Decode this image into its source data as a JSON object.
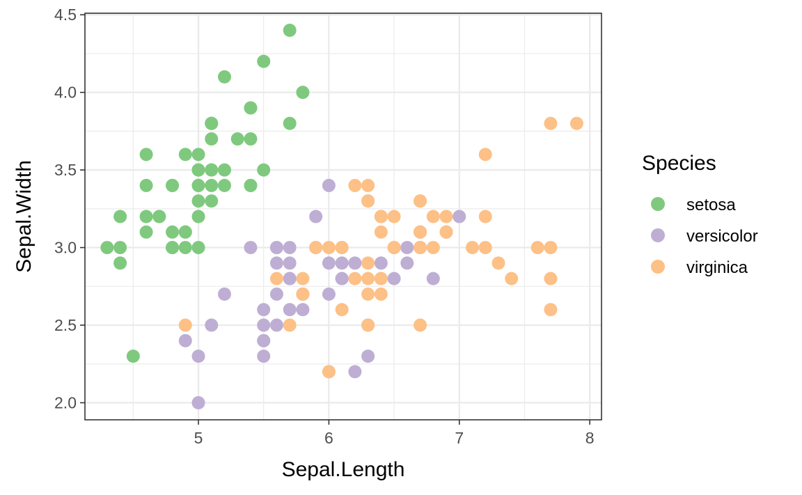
{
  "chart_data": {
    "type": "scatter",
    "xlabel": "Sepal.Length",
    "ylabel": "Sepal.Width",
    "xlim": [
      4.13,
      8.09
    ],
    "ylim": [
      1.89,
      4.51
    ],
    "x_ticks": [
      5,
      6,
      7,
      8
    ],
    "x_minor_ticks": [
      4.5,
      5.5,
      6.5,
      7.5
    ],
    "y_ticks": [
      2.0,
      2.5,
      3.0,
      3.5,
      4.0,
      4.5
    ],
    "y_tick_labels": [
      "2.0",
      "2.5",
      "3.0",
      "3.5",
      "4.0",
      "4.5"
    ],
    "y_minor_ticks": [
      2.25,
      2.75,
      3.25,
      3.75,
      4.25
    ],
    "grid": true,
    "legend": {
      "title": "Species",
      "position": "right"
    },
    "series": [
      {
        "name": "setosa",
        "color": "#7fc97f",
        "points": [
          [
            5.1,
            3.5
          ],
          [
            4.9,
            3.0
          ],
          [
            4.7,
            3.2
          ],
          [
            4.6,
            3.1
          ],
          [
            5.0,
            3.6
          ],
          [
            5.4,
            3.9
          ],
          [
            4.6,
            3.4
          ],
          [
            5.0,
            3.4
          ],
          [
            4.4,
            2.9
          ],
          [
            4.9,
            3.1
          ],
          [
            5.4,
            3.7
          ],
          [
            4.8,
            3.4
          ],
          [
            4.8,
            3.0
          ],
          [
            4.3,
            3.0
          ],
          [
            5.8,
            4.0
          ],
          [
            5.7,
            4.4
          ],
          [
            5.4,
            3.9
          ],
          [
            5.1,
            3.5
          ],
          [
            5.7,
            3.8
          ],
          [
            5.1,
            3.8
          ],
          [
            5.4,
            3.4
          ],
          [
            5.1,
            3.7
          ],
          [
            4.6,
            3.6
          ],
          [
            5.1,
            3.3
          ],
          [
            4.8,
            3.4
          ],
          [
            5.0,
            3.0
          ],
          [
            5.0,
            3.4
          ],
          [
            5.2,
            3.5
          ],
          [
            5.2,
            3.4
          ],
          [
            4.7,
            3.2
          ],
          [
            4.8,
            3.1
          ],
          [
            5.4,
            3.4
          ],
          [
            5.2,
            4.1
          ],
          [
            5.5,
            4.2
          ],
          [
            4.9,
            3.1
          ],
          [
            5.0,
            3.2
          ],
          [
            5.5,
            3.5
          ],
          [
            4.9,
            3.6
          ],
          [
            4.4,
            3.0
          ],
          [
            5.1,
            3.4
          ],
          [
            5.0,
            3.5
          ],
          [
            4.5,
            2.3
          ],
          [
            4.4,
            3.2
          ],
          [
            5.0,
            3.5
          ],
          [
            5.1,
            3.8
          ],
          [
            4.8,
            3.0
          ],
          [
            5.1,
            3.8
          ],
          [
            4.6,
            3.2
          ],
          [
            5.3,
            3.7
          ],
          [
            5.0,
            3.3
          ]
        ]
      },
      {
        "name": "versicolor",
        "color": "#beaed4",
        "points": [
          [
            7.0,
            3.2
          ],
          [
            6.4,
            3.2
          ],
          [
            6.9,
            3.1
          ],
          [
            5.5,
            2.3
          ],
          [
            6.5,
            2.8
          ],
          [
            5.7,
            2.8
          ],
          [
            6.3,
            3.3
          ],
          [
            4.9,
            2.4
          ],
          [
            6.6,
            2.9
          ],
          [
            5.2,
            2.7
          ],
          [
            5.0,
            2.0
          ],
          [
            5.9,
            3.0
          ],
          [
            6.0,
            2.2
          ],
          [
            6.1,
            2.9
          ],
          [
            5.6,
            2.9
          ],
          [
            6.7,
            3.1
          ],
          [
            5.6,
            3.0
          ],
          [
            5.8,
            2.7
          ],
          [
            6.2,
            2.2
          ],
          [
            5.6,
            2.5
          ],
          [
            5.9,
            3.2
          ],
          [
            6.1,
            2.8
          ],
          [
            6.3,
            2.5
          ],
          [
            6.1,
            2.8
          ],
          [
            6.4,
            2.9
          ],
          [
            6.6,
            3.0
          ],
          [
            6.8,
            2.8
          ],
          [
            6.7,
            3.0
          ],
          [
            6.0,
            2.9
          ],
          [
            5.7,
            2.6
          ],
          [
            5.5,
            2.4
          ],
          [
            5.5,
            2.4
          ],
          [
            5.8,
            2.7
          ],
          [
            6.0,
            2.7
          ],
          [
            5.4,
            3.0
          ],
          [
            6.0,
            3.4
          ],
          [
            6.7,
            3.1
          ],
          [
            6.3,
            2.3
          ],
          [
            5.6,
            3.0
          ],
          [
            5.5,
            2.5
          ],
          [
            5.5,
            2.6
          ],
          [
            6.1,
            3.0
          ],
          [
            5.8,
            2.6
          ],
          [
            5.0,
            2.3
          ],
          [
            5.6,
            2.7
          ],
          [
            5.7,
            3.0
          ],
          [
            5.7,
            2.9
          ],
          [
            6.2,
            2.9
          ],
          [
            5.1,
            2.5
          ],
          [
            5.7,
            2.8
          ]
        ]
      },
      {
        "name": "virginica",
        "color": "#fdc086",
        "points": [
          [
            6.3,
            3.3
          ],
          [
            5.8,
            2.7
          ],
          [
            7.1,
            3.0
          ],
          [
            6.3,
            2.9
          ],
          [
            6.5,
            3.0
          ],
          [
            7.6,
            3.0
          ],
          [
            4.9,
            2.5
          ],
          [
            7.3,
            2.9
          ],
          [
            6.7,
            2.5
          ],
          [
            7.2,
            3.6
          ],
          [
            6.5,
            3.2
          ],
          [
            6.4,
            2.7
          ],
          [
            6.8,
            3.0
          ],
          [
            5.7,
            2.5
          ],
          [
            5.8,
            2.8
          ],
          [
            6.4,
            3.2
          ],
          [
            6.5,
            3.0
          ],
          [
            7.7,
            3.8
          ],
          [
            7.7,
            2.6
          ],
          [
            6.0,
            2.2
          ],
          [
            6.9,
            3.2
          ],
          [
            5.6,
            2.8
          ],
          [
            7.7,
            2.8
          ],
          [
            6.3,
            2.7
          ],
          [
            6.7,
            3.3
          ],
          [
            7.2,
            3.2
          ],
          [
            6.2,
            2.8
          ],
          [
            6.1,
            3.0
          ],
          [
            6.4,
            2.8
          ],
          [
            7.2,
            3.0
          ],
          [
            7.4,
            2.8
          ],
          [
            7.9,
            3.8
          ],
          [
            6.4,
            2.8
          ],
          [
            6.3,
            2.8
          ],
          [
            6.1,
            2.6
          ],
          [
            7.7,
            3.0
          ],
          [
            6.3,
            3.4
          ],
          [
            6.4,
            3.1
          ],
          [
            6.0,
            3.0
          ],
          [
            6.9,
            3.1
          ],
          [
            6.7,
            3.1
          ],
          [
            6.9,
            3.1
          ],
          [
            5.8,
            2.7
          ],
          [
            6.8,
            3.2
          ],
          [
            6.7,
            3.3
          ],
          [
            6.7,
            3.0
          ],
          [
            6.3,
            2.5
          ],
          [
            6.5,
            3.0
          ],
          [
            6.2,
            3.4
          ],
          [
            5.9,
            3.0
          ]
        ]
      }
    ]
  }
}
